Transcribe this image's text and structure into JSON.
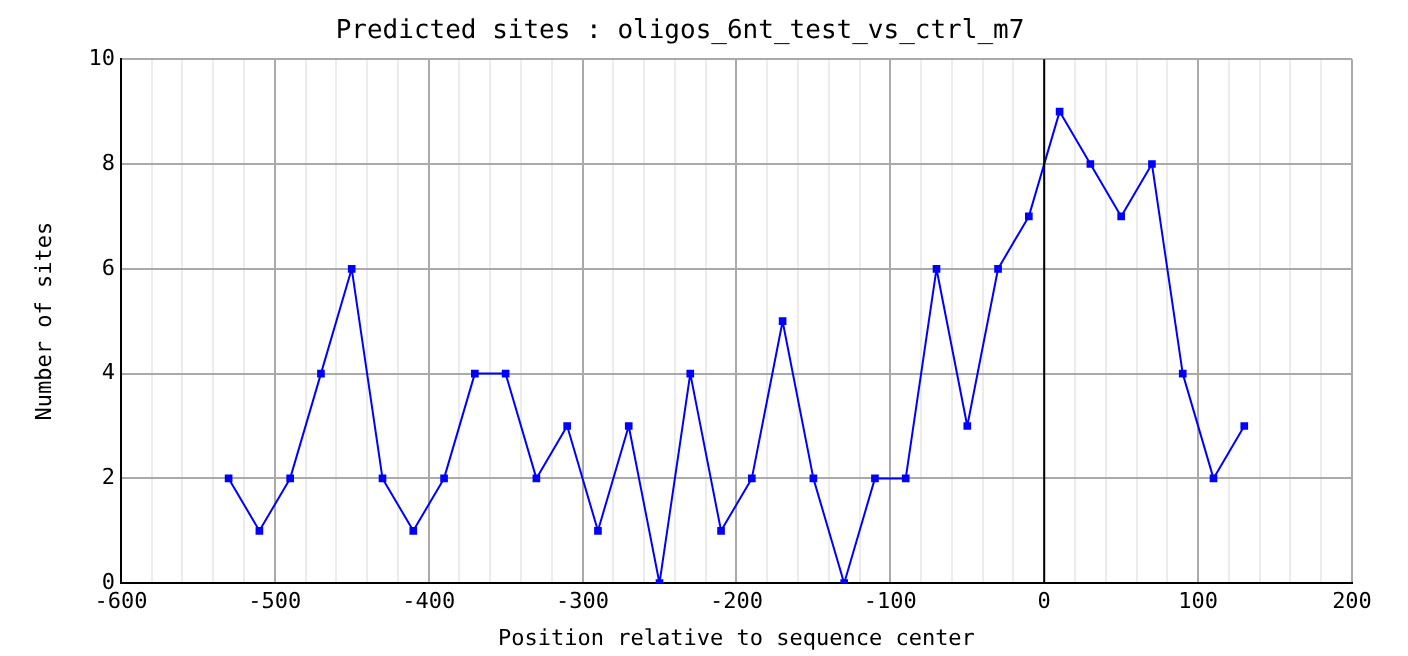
{
  "chart_data": {
    "type": "line",
    "title": "Predicted sites : oligos_6nt_test_vs_ctrl_m7",
    "xlabel": "Position relative to sequence center",
    "ylabel": "Number of sites",
    "x": [
      -530,
      -510,
      -490,
      -470,
      -450,
      -430,
      -410,
      -390,
      -370,
      -350,
      -330,
      -310,
      -290,
      -270,
      -250,
      -230,
      -210,
      -190,
      -170,
      -150,
      -130,
      -110,
      -90,
      -70,
      -50,
      -30,
      -10,
      10,
      30,
      50,
      70,
      90,
      110,
      130
    ],
    "series": [
      {
        "color": "#0000ff",
        "values": [
          2,
          1,
          2,
          4,
          6,
          2,
          1,
          2,
          4,
          4,
          2,
          3,
          1,
          3,
          0,
          4,
          1,
          2,
          5,
          2,
          0,
          2,
          2,
          6,
          3,
          6,
          7,
          9,
          8,
          7,
          8,
          4,
          2,
          3
        ]
      }
    ],
    "xlim": [
      -600,
      200
    ],
    "xticks": [
      -600,
      {
        "value": -580,
        "label": null
      },
      {
        "value": -560,
        "label": null
      },
      {
        "value": -540,
        "label": null
      },
      {
        "value": -520,
        "label": null
      },
      -500,
      {
        "value": -480,
        "label": null
      },
      {
        "value": -460,
        "label": null
      },
      {
        "value": -440,
        "label": null
      },
      {
        "value": -420,
        "label": null
      },
      -400,
      {
        "value": -380,
        "label": null
      },
      {
        "value": -360,
        "label": null
      },
      {
        "value": -340,
        "label": null
      },
      {
        "value": -320,
        "label": null
      },
      -300,
      {
        "value": -280,
        "label": null
      },
      {
        "value": -260,
        "label": null
      },
      {
        "value": -240,
        "label": null
      },
      {
        "value": -220,
        "label": null
      },
      -200,
      {
        "value": -180,
        "label": null
      },
      {
        "value": -160,
        "label": null
      },
      {
        "value": -140,
        "label": null
      },
      {
        "value": -120,
        "label": null
      },
      -100,
      {
        "value": -80,
        "label": null
      },
      {
        "value": -60,
        "label": null
      },
      {
        "value": -40,
        "label": null
      },
      {
        "value": -20,
        "label": null
      },
      0,
      {
        "value": 20,
        "label": null
      },
      {
        "value": 40,
        "label": null
      },
      {
        "value": 60,
        "label": null
      },
      {
        "value": 80,
        "label": null
      },
      100,
      {
        "value": 120,
        "label": null
      },
      {
        "value": 140,
        "label": null
      },
      {
        "value": 160,
        "label": null
      },
      {
        "value": 180,
        "label": null
      },
      200
    ],
    "ylim": [
      0,
      10
    ],
    "yticks": [
      0,
      2,
      4,
      6,
      8,
      10
    ],
    "ref_lines": [
      {
        "axis": "x",
        "value": 0,
        "color": "#000000"
      }
    ],
    "grid": true,
    "marker": "square",
    "line_style": "solid"
  }
}
